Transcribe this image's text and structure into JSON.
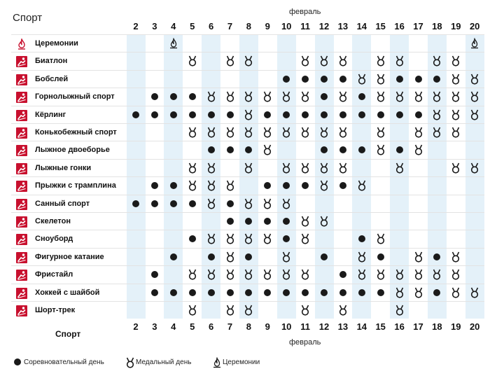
{
  "header": {
    "sport_label": "Спорт",
    "month_label": "февраль"
  },
  "footer": {
    "sport_label": "Спорт",
    "month_label": "февраль"
  },
  "days": [
    "2",
    "3",
    "4",
    "5",
    "6",
    "7",
    "8",
    "9",
    "10",
    "11",
    "12",
    "13",
    "14",
    "15",
    "16",
    "17",
    "18",
    "19",
    "20"
  ],
  "shaded_days": [
    "2",
    "4",
    "6",
    "8",
    "10",
    "12",
    "14",
    "16",
    "18",
    "20"
  ],
  "colors": {
    "accent": "#c8102e",
    "shade": "#e4f1f9",
    "mark": "#1a1a1a"
  },
  "legend": [
    {
      "icon": "competition-dot",
      "label": "Соревновательный день"
    },
    {
      "icon": "medal-icon",
      "label": "Медальный день"
    },
    {
      "icon": "ceremony-flame-icon",
      "label": "Церемонии"
    }
  ],
  "sports": [
    {
      "name": "Церемонии",
      "icon": "ceremony-flame-icon",
      "marks": {
        "4": "c",
        "20": "c"
      }
    },
    {
      "name": "Биатлон",
      "icon": "biathlon-icon",
      "marks": {
        "5": "m",
        "7": "m",
        "8": "m",
        "11": "m",
        "12": "m",
        "13": "m",
        "15": "m",
        "16": "m",
        "18": "m",
        "19": "m"
      }
    },
    {
      "name": "Бобслей",
      "icon": "bobsleigh-icon",
      "marks": {
        "10": "d",
        "11": "d",
        "12": "d",
        "13": "d",
        "14": "m",
        "15": "m",
        "16": "d",
        "17": "d",
        "18": "d",
        "19": "m",
        "20": "m"
      }
    },
    {
      "name": "Горнолыжный спорт",
      "icon": "alpine-skiing-icon",
      "marks": {
        "3": "d",
        "4": "d",
        "5": "d",
        "6": "m",
        "7": "m",
        "8": "m",
        "9": "m",
        "10": "m",
        "11": "m",
        "12": "d",
        "13": "m",
        "14": "d",
        "15": "m",
        "16": "m",
        "17": "m",
        "18": "m",
        "19": "m",
        "20": "m"
      }
    },
    {
      "name": "Кёрлинг",
      "icon": "curling-icon",
      "marks": {
        "2": "d",
        "3": "d",
        "4": "d",
        "5": "d",
        "6": "d",
        "7": "d",
        "8": "m",
        "9": "d",
        "10": "d",
        "11": "d",
        "12": "d",
        "13": "d",
        "14": "d",
        "15": "d",
        "16": "d",
        "17": "d",
        "18": "m",
        "19": "m",
        "20": "m"
      }
    },
    {
      "name": "Конькобежный спорт",
      "icon": "speed-skating-icon",
      "marks": {
        "5": "m",
        "6": "m",
        "7": "m",
        "8": "m",
        "9": "m",
        "10": "m",
        "11": "m",
        "12": "m",
        "13": "m",
        "15": "m",
        "17": "m",
        "18": "m",
        "19": "m"
      }
    },
    {
      "name": "Лыжное двоеборье",
      "icon": "nordic-combined-icon",
      "marks": {
        "6": "d",
        "7": "d",
        "8": "d",
        "9": "m",
        "12": "d",
        "13": "d",
        "14": "d",
        "15": "m",
        "16": "d",
        "17": "m"
      }
    },
    {
      "name": "Лыжные гонки",
      "icon": "cross-country-icon",
      "marks": {
        "5": "m",
        "6": "m",
        "8": "m",
        "10": "m",
        "11": "m",
        "12": "m",
        "13": "m",
        "16": "m",
        "19": "m",
        "20": "m"
      }
    },
    {
      "name": "Прыжки с трамплина",
      "icon": "ski-jumping-icon",
      "marks": {
        "3": "d",
        "4": "d",
        "5": "m",
        "6": "m",
        "7": "m",
        "9": "d",
        "10": "d",
        "11": "d",
        "12": "m",
        "13": "d",
        "14": "m"
      }
    },
    {
      "name": "Санный спорт",
      "icon": "luge-icon",
      "marks": {
        "2": "d",
        "3": "d",
        "4": "d",
        "5": "d",
        "6": "m",
        "7": "d",
        "8": "m",
        "9": "m",
        "10": "m"
      }
    },
    {
      "name": "Скелетон",
      "icon": "skeleton-icon",
      "marks": {
        "7": "d",
        "8": "d",
        "9": "d",
        "10": "d",
        "11": "m",
        "12": "m"
      }
    },
    {
      "name": "Сноуборд",
      "icon": "snowboard-icon",
      "marks": {
        "5": "d",
        "6": "m",
        "7": "m",
        "8": "m",
        "9": "m",
        "10": "d",
        "11": "m",
        "14": "d",
        "15": "m"
      }
    },
    {
      "name": "Фигурное катание",
      "icon": "figure-skating-icon",
      "marks": {
        "4": "d",
        "6": "d",
        "7": "m",
        "8": "d",
        "10": "m",
        "12": "d",
        "14": "m",
        "15": "d",
        "17": "m",
        "18": "d",
        "19": "m"
      }
    },
    {
      "name": "Фристайл",
      "icon": "freestyle-icon",
      "marks": {
        "3": "d",
        "5": "m",
        "6": "m",
        "7": "m",
        "8": "m",
        "9": "m",
        "10": "m",
        "11": "m",
        "13": "d",
        "14": "m",
        "15": "m",
        "16": "m",
        "17": "m",
        "18": "m",
        "19": "m"
      }
    },
    {
      "name": "Хоккей с шайбой",
      "icon": "ice-hockey-icon",
      "marks": {
        "3": "d",
        "4": "d",
        "5": "d",
        "6": "d",
        "7": "d",
        "8": "d",
        "9": "d",
        "10": "d",
        "11": "d",
        "12": "d",
        "13": "d",
        "14": "d",
        "15": "d",
        "16": "m",
        "17": "m",
        "18": "d",
        "19": "m",
        "20": "m"
      }
    },
    {
      "name": "Шорт-трек",
      "icon": "short-track-icon",
      "marks": {
        "5": "m",
        "7": "m",
        "8": "m",
        "11": "m",
        "13": "m",
        "16": "m"
      }
    }
  ]
}
